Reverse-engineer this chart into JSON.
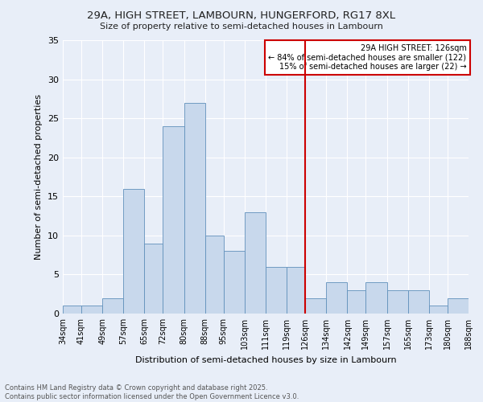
{
  "title1": "29A, HIGH STREET, LAMBOURN, HUNGERFORD, RG17 8XL",
  "title2": "Size of property relative to semi-detached houses in Lambourn",
  "xlabel": "Distribution of semi-detached houses by size in Lambourn",
  "ylabel": "Number of semi-detached properties",
  "bar_color": "#c8d8ec",
  "bar_edge_color": "#6090bb",
  "background_color": "#e8eef8",
  "bins": [
    34,
    41,
    49,
    57,
    65,
    72,
    80,
    88,
    95,
    103,
    111,
    119,
    126,
    134,
    142,
    149,
    157,
    165,
    173,
    180,
    188
  ],
  "bin_labels": [
    "34sqm",
    "41sqm",
    "49sqm",
    "57sqm",
    "65sqm",
    "72sqm",
    "80sqm",
    "88sqm",
    "95sqm",
    "103sqm",
    "111sqm",
    "119sqm",
    "126sqm",
    "134sqm",
    "142sqm",
    "149sqm",
    "157sqm",
    "165sqm",
    "173sqm",
    "180sqm",
    "188sqm"
  ],
  "counts": [
    1,
    1,
    2,
    16,
    9,
    24,
    27,
    10,
    8,
    13,
    6,
    6,
    2,
    4,
    3,
    4,
    3,
    3,
    1,
    2
  ],
  "property_size_idx": 12,
  "property_label": "29A HIGH STREET: 126sqm",
  "annotation_line1": "← 84% of semi-detached houses are smaller (122)",
  "annotation_line2": "15% of semi-detached houses are larger (22) →",
  "vline_color": "#cc0000",
  "annotation_box_color": "#cc0000",
  "ylim": [
    0,
    35
  ],
  "yticks": [
    0,
    5,
    10,
    15,
    20,
    25,
    30,
    35
  ],
  "footer1": "Contains HM Land Registry data © Crown copyright and database right 2025.",
  "footer2": "Contains public sector information licensed under the Open Government Licence v3.0."
}
